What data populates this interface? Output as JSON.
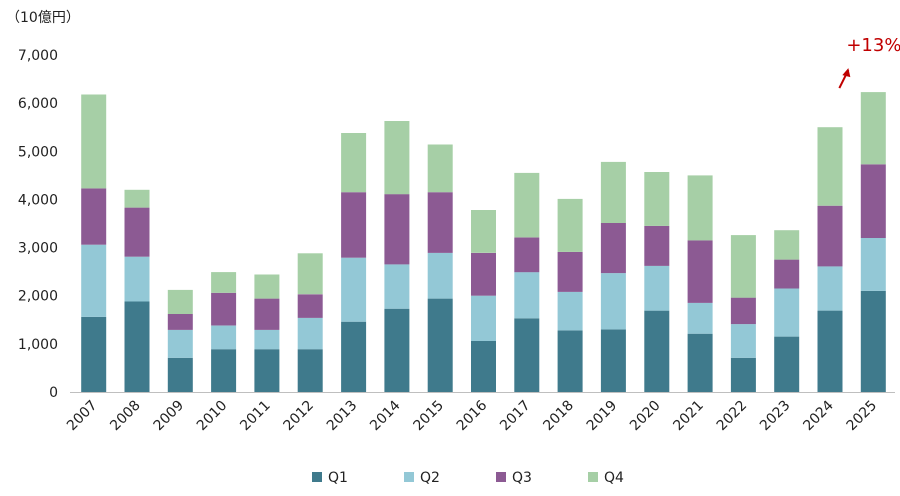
{
  "chart_data": {
    "type": "bar",
    "stacked": true,
    "unit_label": "（10億円）",
    "categories": [
      "2007",
      "2008",
      "2009",
      "2010",
      "2011",
      "2012",
      "2013",
      "2014",
      "2015",
      "2016",
      "2017",
      "2018",
      "2019",
      "2020",
      "2021",
      "2022",
      "2023",
      "2024",
      "2025"
    ],
    "series": [
      {
        "name": "Q1",
        "color": "#3f7a8c",
        "values": [
          1560,
          1880,
          710,
          890,
          890,
          890,
          1460,
          1730,
          1940,
          1060,
          1530,
          1280,
          1300,
          1690,
          1210,
          710,
          1150,
          1690,
          2100
        ]
      },
      {
        "name": "Q2",
        "color": "#93c8d6",
        "values": [
          1500,
          930,
          580,
          490,
          400,
          650,
          1330,
          920,
          950,
          940,
          960,
          800,
          1170,
          930,
          640,
          700,
          1000,
          920,
          1100
        ]
      },
      {
        "name": "Q3",
        "color": "#8c5a93",
        "values": [
          1170,
          1020,
          330,
          680,
          650,
          490,
          1360,
          1460,
          1260,
          890,
          720,
          830,
          1040,
          830,
          1300,
          550,
          600,
          1260,
          1530
        ]
      },
      {
        "name": "Q4",
        "color": "#a6cfa6",
        "values": [
          1950,
          370,
          500,
          430,
          500,
          850,
          1230,
          1520,
          990,
          890,
          1340,
          1100,
          1270,
          1120,
          1350,
          1300,
          610,
          1630,
          1500
        ]
      }
    ],
    "ylim": [
      0,
      7000
    ],
    "yticks": [
      "0",
      "1,000",
      "2,000",
      "3,000",
      "4,000",
      "5,000",
      "6,000",
      "7,000"
    ],
    "grid": false,
    "legend": "bottom",
    "annotation": {
      "text": "+13%",
      "category": "2025",
      "color": "#c00000"
    }
  }
}
